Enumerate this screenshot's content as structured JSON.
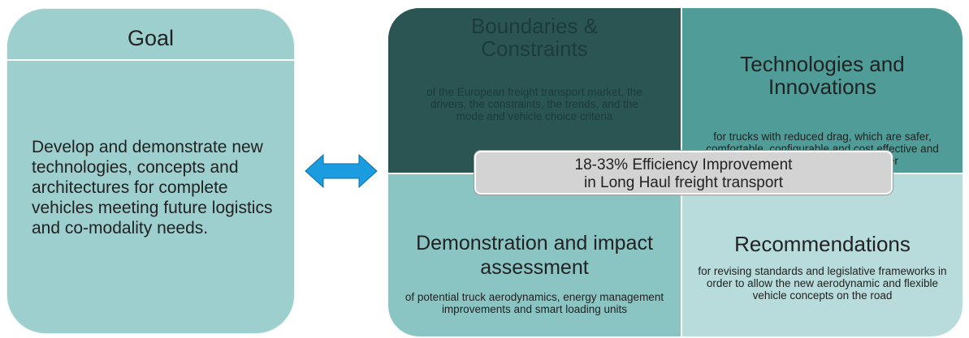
{
  "goal": {
    "title": "Goal",
    "text": "Develop and demonstrate new technologies, concepts and architectures for complete vehicles meeting future logistics and co-modality needs."
  },
  "quadrants": [
    {
      "title": "Boundaries & Constraints",
      "text": "of the European freight transport market, the drivers, the constraints, the trends, and the mode and vehicle choice criteria"
    },
    {
      "title": "Technologies and Innovations",
      "text": "for trucks with reduced drag, which are safer, comfortable, configurable and cost effective and ensure satisfaction of customer"
    },
    {
      "title": "Demonstration and impact assessment",
      "text": "of potential truck aerodynamics, energy management improvements and smart loading units"
    },
    {
      "title": "Recommendations",
      "text": "for revising standards and legislative frameworks in order to allow the new aerodynamic and flexible vehicle concepts on the road"
    }
  ],
  "center": {
    "line1": "18-33% Efficiency Improvement",
    "line2": "in Long Haul freight transport"
  }
}
